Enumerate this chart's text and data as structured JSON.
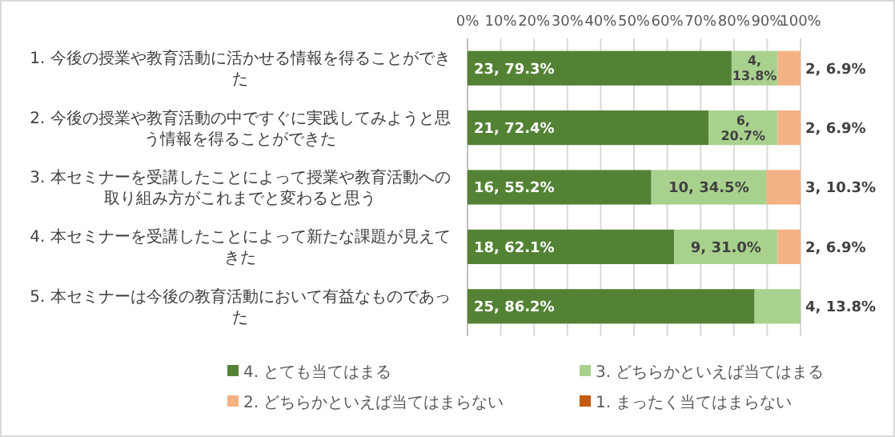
{
  "chart_data": {
    "type": "bar",
    "orientation": "horizontal",
    "stacked": true,
    "categories": [
      "1. 今後の授業や教育活動に活かせる情報を得ることができた",
      "2. 今後の授業や教育活動の中ですぐに実践してみようと思う情報を得ることができた",
      "3. 本セミナーを受講したことによって授業や教育活動への取り組み方がこれまでと変わると思う",
      "4. 本セミナーを受講したことによって新たな課題が見えてきた",
      "5. 本セミナーは今後の教育活動において有益なものであった"
    ],
    "series": [
      {
        "name": "4. とても当てはまる",
        "color": "#548235",
        "values": [
          79.3,
          72.4,
          55.2,
          62.1,
          86.2
        ],
        "value_labels": [
          "23, 79.3%",
          "21, 72.4%",
          "16, 55.2%",
          "18, 62.1%",
          "25, 86.2%"
        ]
      },
      {
        "name": "3. どちらかといえば当てはまる",
        "color": "#a9d18e",
        "values": [
          13.8,
          20.7,
          34.5,
          31.0,
          13.8
        ],
        "value_labels": [
          "4, 13.8%",
          "6, 20.7%",
          "10, 34.5%",
          "9, 31.0%",
          "4, 13.8%"
        ]
      },
      {
        "name": "2. どちらかといえば当てはまらない",
        "color": "#f4b183",
        "values": [
          6.9,
          6.9,
          10.3,
          6.9,
          0
        ],
        "value_labels": [
          "2, 6.9%",
          "2, 6.9%",
          "3, 10.3%",
          "2, 6.9%",
          null
        ]
      },
      {
        "name": "1. まったく当てはまらない",
        "color": "#c55a11",
        "values": [
          0,
          0,
          0,
          0,
          0
        ],
        "value_labels": [
          null,
          null,
          null,
          null,
          null
        ]
      }
    ],
    "xlim": [
      0,
      100
    ],
    "xticks": [
      {
        "value": 0,
        "label": "0%"
      },
      {
        "value": 10,
        "label": "10%"
      },
      {
        "value": 20,
        "label": "20%"
      },
      {
        "value": 30,
        "label": "30%"
      },
      {
        "value": 40,
        "label": "40%"
      },
      {
        "value": 50,
        "label": "50%"
      },
      {
        "value": 60,
        "label": "60%"
      },
      {
        "value": 70,
        "label": "70%"
      },
      {
        "value": 80,
        "label": "80%"
      },
      {
        "value": 90,
        "label": "90%"
      },
      {
        "value": 100,
        "label": "100%"
      }
    ],
    "grid": "x",
    "legend": "bottom"
  }
}
